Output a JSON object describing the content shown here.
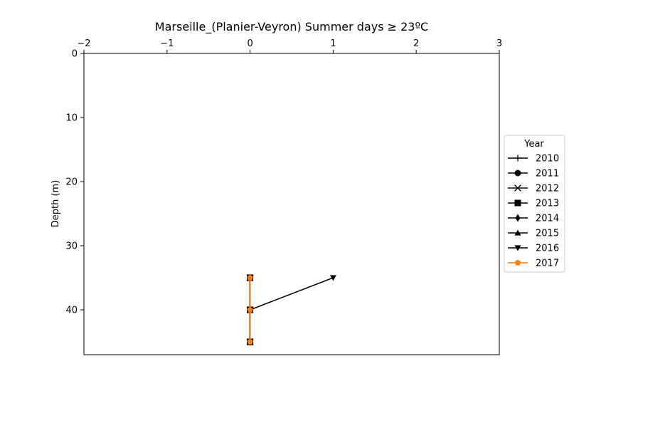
{
  "chart_data": {
    "type": "line",
    "title": "Marseille_(Planier-Veyron) Summer days ≥ 23ºC",
    "xlabel": "",
    "ylabel": "Depth (m)",
    "xlim": [
      -2,
      3
    ],
    "ylim": [
      0,
      47
    ],
    "y_inverted": true,
    "x_axis_position": "top",
    "x_ticks": [
      -2,
      -1,
      0,
      1,
      2,
      3
    ],
    "x_tick_labels": [
      "−2",
      "−1",
      "0",
      "1",
      "2",
      "3"
    ],
    "y_ticks": [
      0,
      10,
      20,
      30,
      40
    ],
    "y_tick_labels": [
      "0",
      "10",
      "20",
      "30",
      "40"
    ],
    "grid": false,
    "legend": {
      "title": "Year",
      "placement": "right-outside"
    },
    "depths": [
      35,
      40,
      45
    ],
    "series": [
      {
        "name": "2010",
        "marker": "plus",
        "color": "#000000",
        "x": [
          0,
          0,
          0
        ],
        "y": [
          35,
          40,
          45
        ]
      },
      {
        "name": "2011",
        "marker": "circle",
        "color": "#000000",
        "x": [
          0,
          0,
          0
        ],
        "y": [
          35,
          40,
          45
        ]
      },
      {
        "name": "2012",
        "marker": "x",
        "color": "#000000",
        "x": [
          0,
          0,
          0
        ],
        "y": [
          35,
          40,
          45
        ]
      },
      {
        "name": "2013",
        "marker": "square",
        "color": "#000000",
        "x": [
          0,
          0,
          0
        ],
        "y": [
          35,
          40,
          45
        ]
      },
      {
        "name": "2014",
        "marker": "diamond",
        "color": "#000000",
        "x": [
          0,
          0,
          0
        ],
        "y": [
          35,
          40,
          45
        ]
      },
      {
        "name": "2015",
        "marker": "triangle-up",
        "color": "#000000",
        "x": [
          0,
          0,
          0
        ],
        "y": [
          35,
          40,
          45
        ]
      },
      {
        "name": "2016",
        "marker": "triangle-down",
        "color": "#000000",
        "x": [
          1,
          0,
          0
        ],
        "y": [
          35,
          40,
          45
        ]
      },
      {
        "name": "2017",
        "marker": "pentagon",
        "color": "#ff7f0e",
        "x": [
          0,
          0,
          0
        ],
        "y": [
          35,
          40,
          45
        ]
      }
    ]
  }
}
